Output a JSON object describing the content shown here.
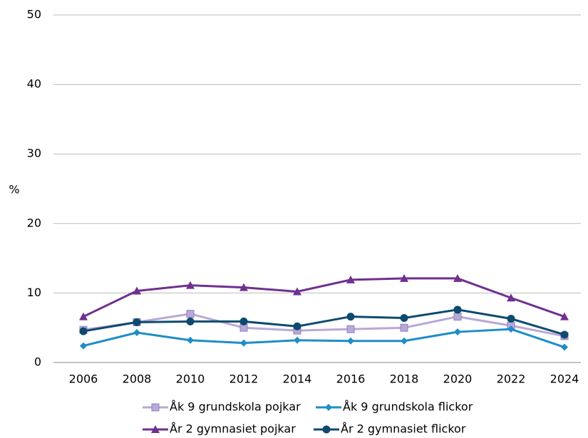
{
  "chart_data": {
    "type": "line",
    "y_label": "%",
    "categories": [
      "2006",
      "2008",
      "2010",
      "2012",
      "2014",
      "2016",
      "2018",
      "2020",
      "2022",
      "2024"
    ],
    "series": [
      {
        "name": "Åk 9 grundskola pojkar",
        "color": "#b9a9d6",
        "marker": "square",
        "values": [
          4.7,
          5.8,
          7.0,
          5.0,
          4.6,
          4.8,
          5.0,
          6.6,
          5.3,
          3.8
        ]
      },
      {
        "name": "Åk 9 grundskola flickor",
        "color": "#1f8dc9",
        "marker": "diamond",
        "values": [
          2.4,
          4.3,
          3.2,
          2.8,
          3.2,
          3.1,
          3.1,
          4.4,
          4.8,
          2.2
        ]
      },
      {
        "name": "År 2 gymnasiet pojkar",
        "color": "#70308f",
        "marker": "triangle",
        "values": [
          6.6,
          10.3,
          11.1,
          10.8,
          10.2,
          11.9,
          12.1,
          12.1,
          9.3,
          6.6
        ]
      },
      {
        "name": "År 2 gymnasiet flickor",
        "color": "#0d4a6e",
        "marker": "circle",
        "values": [
          4.5,
          5.8,
          5.9,
          5.9,
          5.2,
          6.6,
          6.4,
          7.6,
          6.3,
          4.0
        ]
      }
    ],
    "ylim": [
      0,
      50
    ],
    "yticks": [
      0,
      10,
      20,
      30,
      40,
      50
    ],
    "grid": true
  }
}
